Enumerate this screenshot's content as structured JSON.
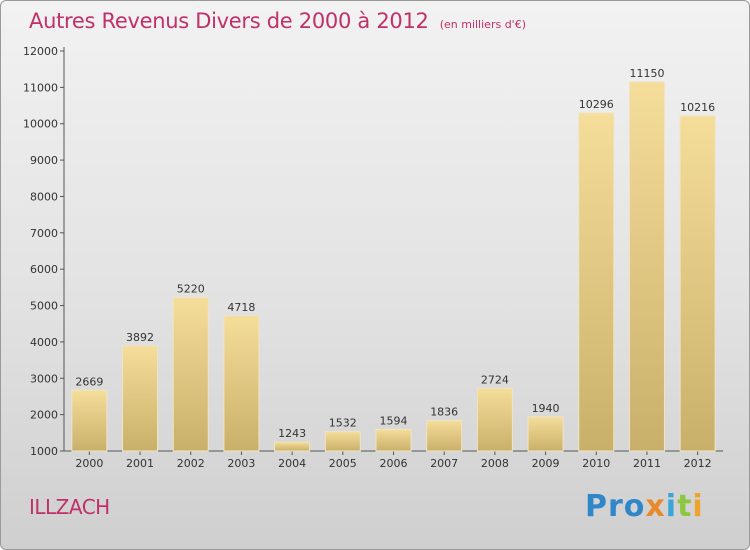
{
  "chart_data": {
    "type": "bar",
    "title": "Autres Revenus Divers de 2000 à 2012",
    "subtitle": "(en milliers d'€)",
    "categories": [
      "2000",
      "2001",
      "2002",
      "2003",
      "2004",
      "2005",
      "2006",
      "2007",
      "2008",
      "2009",
      "2010",
      "2011",
      "2012"
    ],
    "values": [
      2669,
      3892,
      5220,
      4718,
      1243,
      1532,
      1594,
      1836,
      2724,
      1940,
      10296,
      11150,
      10216
    ],
    "yticks": [
      "1000",
      "2000",
      "3000",
      "4000",
      "5000",
      "6000",
      "7000",
      "8000",
      "9000",
      "10000",
      "11000",
      "12000"
    ],
    "ylim": [
      1000,
      12000
    ],
    "grid": false,
    "legend": "none",
    "bar_color_light": "#f5dd9a",
    "bar_color_dark": "#c9b06a"
  },
  "location": "ILLZACH",
  "brand": {
    "name": "Proxiti",
    "parts": [
      "Pro",
      "x",
      "i",
      "t",
      "i"
    ]
  }
}
